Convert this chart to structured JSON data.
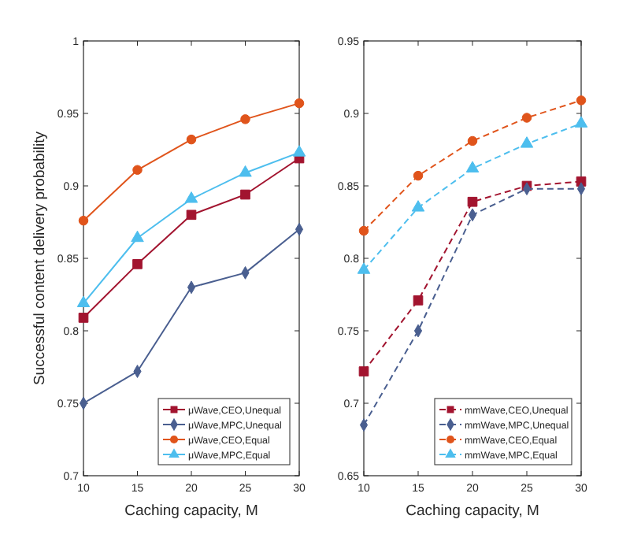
{
  "chart_data": [
    {
      "type": "line",
      "xlabel": "Caching capacity, M",
      "ylabel": "Successful content delivery probability",
      "x": [
        10,
        15,
        20,
        25,
        30
      ],
      "xlim": [
        10,
        30
      ],
      "xticks": [
        10,
        15,
        20,
        25,
        30
      ],
      "ylim": [
        0.7,
        1
      ],
      "yticks": [
        0.7,
        0.75,
        0.8,
        0.85,
        0.9,
        0.95,
        1
      ],
      "grid": false,
      "legend": "bottom right",
      "line_style": "solid",
      "series": [
        {
          "name": "μWave,CEO,Unequal",
          "color": "#a2142f",
          "marker": "square",
          "values": [
            0.809,
            0.846,
            0.88,
            0.894,
            0.919
          ]
        },
        {
          "name": "μWave,MPC,Unequal",
          "color": "#4a5f90",
          "marker": "diamond",
          "values": [
            0.75,
            0.772,
            0.83,
            0.84,
            0.87
          ]
        },
        {
          "name": "μWave,CEO,Equal",
          "color": "#e0541b",
          "marker": "circle",
          "values": [
            0.876,
            0.911,
            0.932,
            0.946,
            0.957
          ]
        },
        {
          "name": "μWave,MPC,Equal",
          "color": "#4dbeee",
          "marker": "triangle",
          "values": [
            0.819,
            0.864,
            0.891,
            0.909,
            0.923
          ]
        }
      ]
    },
    {
      "type": "line",
      "xlabel": "Caching capacity, M",
      "x": [
        10,
        15,
        20,
        25,
        30
      ],
      "xlim": [
        10,
        30
      ],
      "xticks": [
        10,
        15,
        20,
        25,
        30
      ],
      "ylim": [
        0.65,
        0.95
      ],
      "yticks": [
        0.65,
        0.7,
        0.75,
        0.8,
        0.85,
        0.9,
        0.95
      ],
      "grid": false,
      "legend": "bottom right",
      "line_style": "dashed",
      "series": [
        {
          "name": "mmWave,CEO,Unequal",
          "color": "#a2142f",
          "marker": "square",
          "values": [
            0.722,
            0.771,
            0.839,
            0.85,
            0.853
          ]
        },
        {
          "name": "mmWave,MPC,Unequal",
          "color": "#4a5f90",
          "marker": "diamond",
          "values": [
            0.685,
            0.75,
            0.83,
            0.848,
            0.848
          ]
        },
        {
          "name": "mmWave,CEO,Equal",
          "color": "#e0541b",
          "marker": "circle",
          "values": [
            0.819,
            0.857,
            0.881,
            0.897,
            0.909
          ]
        },
        {
          "name": "mmWave,MPC,Equal",
          "color": "#4dbeee",
          "marker": "triangle",
          "values": [
            0.792,
            0.835,
            0.862,
            0.879,
            0.893
          ]
        }
      ]
    }
  ]
}
